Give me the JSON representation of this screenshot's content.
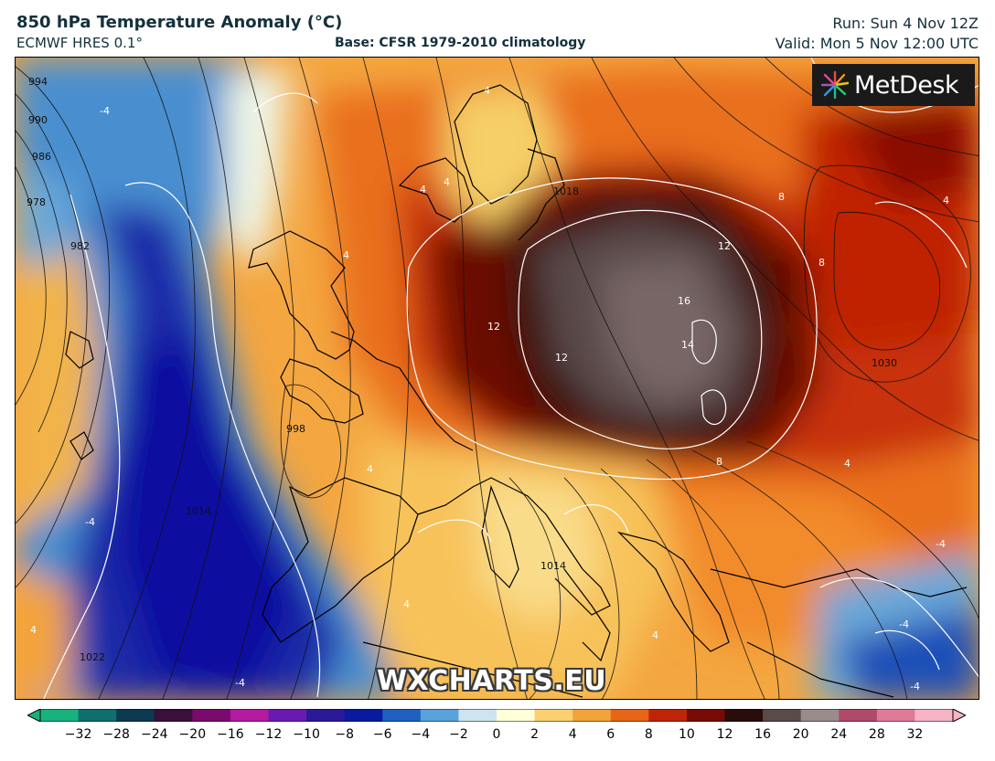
{
  "header": {
    "title": "850 hPa Temperature Anomaly (°C)",
    "model": "ECMWF HRES 0.1°",
    "base": "Base: CFSR 1979-2010 climatology",
    "run": "Run: Sun 4 Nov 12Z",
    "valid": "Valid: Mon 5 Nov 12:00 UTC"
  },
  "logo": {
    "text": "MetDesk",
    "icon": "metdesk-starburst-icon"
  },
  "watermark": "WXCHARTS.EU",
  "map": {
    "pressure_labels": [
      "994",
      "990",
      "986",
      "978",
      "982",
      "998",
      "1014",
      "1014",
      "1022",
      "1030",
      "1018"
    ],
    "anomaly_labels": [
      "-4",
      "4",
      "4",
      "4",
      "4",
      "12",
      "12",
      "12",
      "16",
      "14",
      "8",
      "8",
      "8",
      "4",
      "4",
      "4",
      "4",
      "-4",
      "-4",
      "-4",
      "4",
      "-4",
      "-4",
      "4"
    ]
  },
  "colorbar": {
    "ticks": [
      "−32",
      "−28",
      "−24",
      "−20",
      "−16",
      "−12",
      "−10",
      "−8",
      "−6",
      "−4",
      "−2",
      "0",
      "2",
      "4",
      "6",
      "8",
      "10",
      "12",
      "16",
      "20",
      "24",
      "28",
      "32"
    ],
    "colors": [
      "#17b27e",
      "#0f6e6e",
      "#0c3a50",
      "#3a0f3a",
      "#7a0a6e",
      "#b41aa0",
      "#6a1ab0",
      "#2a1a9a",
      "#0a1aa0",
      "#1f5fc0",
      "#5aa2dc",
      "#cde4f1",
      "#ffffd8",
      "#fbd070",
      "#f3a33a",
      "#e66516",
      "#c02406",
      "#780a04",
      "#2a0c0c",
      "#5a4a4a",
      "#9a8c8c",
      "#b04a6a",
      "#e07a98",
      "#f7b4c6"
    ],
    "end_left_color": "#17b27e",
    "end_right_color": "#f7b4c6"
  }
}
